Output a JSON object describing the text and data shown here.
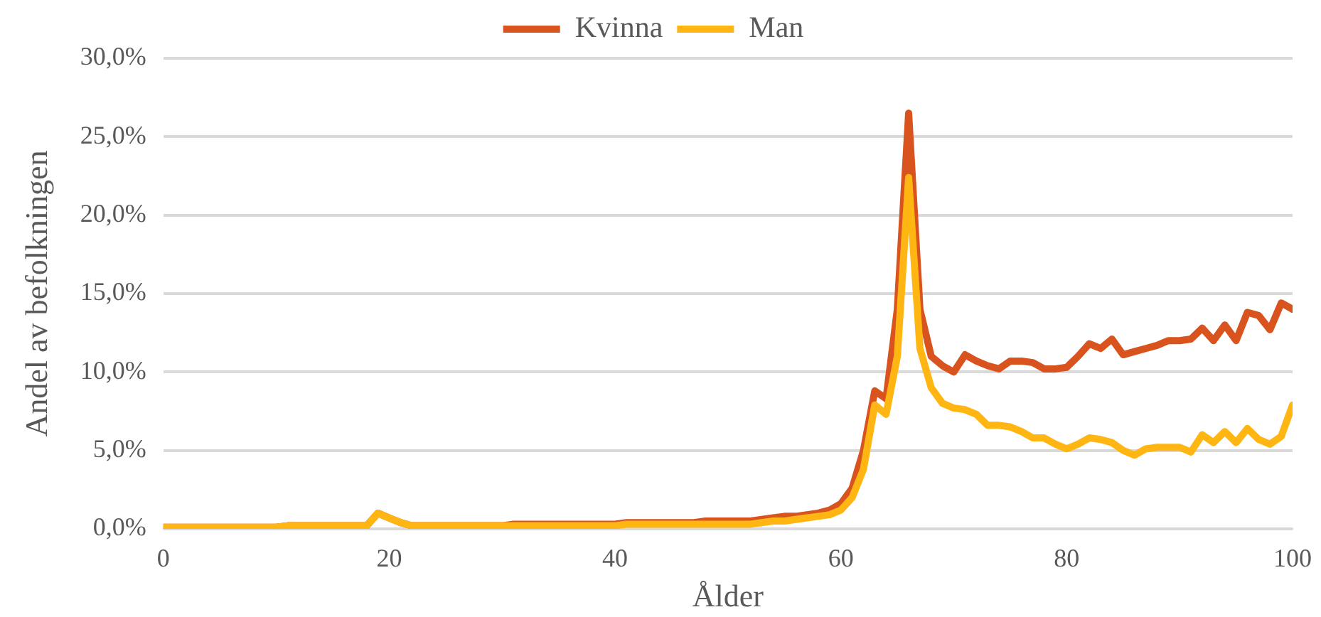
{
  "chart_data": {
    "type": "line",
    "xlabel": "Ålder",
    "ylabel": "Andel av befolkningen",
    "x": [
      0,
      1,
      2,
      3,
      4,
      5,
      6,
      7,
      8,
      9,
      10,
      11,
      12,
      13,
      14,
      15,
      16,
      17,
      18,
      19,
      20,
      21,
      22,
      23,
      24,
      25,
      26,
      27,
      28,
      29,
      30,
      31,
      32,
      33,
      34,
      35,
      36,
      37,
      38,
      39,
      40,
      41,
      42,
      43,
      44,
      45,
      46,
      47,
      48,
      49,
      50,
      51,
      52,
      53,
      54,
      55,
      56,
      57,
      58,
      59,
      60,
      61,
      62,
      63,
      64,
      65,
      66,
      67,
      68,
      69,
      70,
      71,
      72,
      73,
      74,
      75,
      76,
      77,
      78,
      79,
      80,
      81,
      82,
      83,
      84,
      85,
      86,
      87,
      88,
      89,
      90,
      91,
      92,
      93,
      94,
      95,
      96,
      97,
      98,
      99,
      100
    ],
    "series": [
      {
        "name": "Kvinna",
        "color": "#d9531e",
        "values": [
          0.1,
          0.1,
          0.1,
          0.1,
          0.1,
          0.1,
          0.1,
          0.1,
          0.1,
          0.1,
          0.1,
          0.2,
          0.2,
          0.2,
          0.2,
          0.2,
          0.2,
          0.2,
          0.2,
          1.0,
          0.7,
          0.4,
          0.2,
          0.2,
          0.2,
          0.2,
          0.2,
          0.2,
          0.2,
          0.2,
          0.2,
          0.3,
          0.3,
          0.3,
          0.3,
          0.3,
          0.3,
          0.3,
          0.3,
          0.3,
          0.3,
          0.4,
          0.4,
          0.4,
          0.4,
          0.4,
          0.4,
          0.4,
          0.5,
          0.5,
          0.5,
          0.5,
          0.5,
          0.6,
          0.7,
          0.8,
          0.8,
          0.9,
          1.0,
          1.2,
          1.6,
          2.6,
          5.0,
          8.8,
          8.3,
          14.0,
          26.5,
          14.0,
          11.0,
          10.4,
          10.0,
          11.1,
          10.7,
          10.4,
          10.2,
          10.7,
          10.7,
          10.6,
          10.2,
          10.2,
          10.3,
          11.0,
          11.8,
          11.5,
          12.1,
          11.1,
          11.3,
          11.5,
          11.7,
          12.0,
          12.0,
          12.1,
          12.8,
          12.0,
          13.0,
          12.0,
          13.8,
          13.6,
          12.7,
          14.4,
          14.0
        ]
      },
      {
        "name": "Man",
        "color": "#ffb612",
        "values": [
          0.1,
          0.1,
          0.1,
          0.1,
          0.1,
          0.1,
          0.1,
          0.1,
          0.1,
          0.1,
          0.1,
          0.2,
          0.2,
          0.2,
          0.2,
          0.2,
          0.2,
          0.2,
          0.2,
          1.0,
          0.7,
          0.4,
          0.2,
          0.2,
          0.2,
          0.2,
          0.2,
          0.2,
          0.2,
          0.2,
          0.2,
          0.2,
          0.2,
          0.2,
          0.2,
          0.2,
          0.2,
          0.2,
          0.2,
          0.2,
          0.2,
          0.3,
          0.3,
          0.3,
          0.3,
          0.3,
          0.3,
          0.3,
          0.3,
          0.3,
          0.3,
          0.3,
          0.3,
          0.4,
          0.5,
          0.5,
          0.6,
          0.7,
          0.8,
          0.9,
          1.2,
          2.0,
          3.8,
          7.9,
          7.3,
          11.0,
          22.4,
          11.5,
          9.0,
          8.0,
          7.7,
          7.6,
          7.3,
          6.6,
          6.6,
          6.5,
          6.2,
          5.8,
          5.8,
          5.4,
          5.1,
          5.4,
          5.8,
          5.7,
          5.5,
          5.0,
          4.7,
          5.1,
          5.2,
          5.2,
          5.2,
          4.9,
          6.0,
          5.5,
          6.2,
          5.5,
          6.4,
          5.7,
          5.4,
          5.9,
          7.9
        ]
      }
    ],
    "xlim": [
      0,
      100
    ],
    "xticks": [
      0,
      20,
      40,
      60,
      80,
      100
    ],
    "ylim": [
      0,
      30
    ],
    "yticks": [
      {
        "value": 0,
        "label": "0,0%"
      },
      {
        "value": 5,
        "label": "5,0%"
      },
      {
        "value": 10,
        "label": "10,0%"
      },
      {
        "value": 15,
        "label": "15,0%"
      },
      {
        "value": 20,
        "label": "20,0%"
      },
      {
        "value": 25,
        "label": "25,0%"
      },
      {
        "value": 30,
        "label": "30,0%"
      }
    ],
    "grid": "y",
    "legend": "top"
  }
}
